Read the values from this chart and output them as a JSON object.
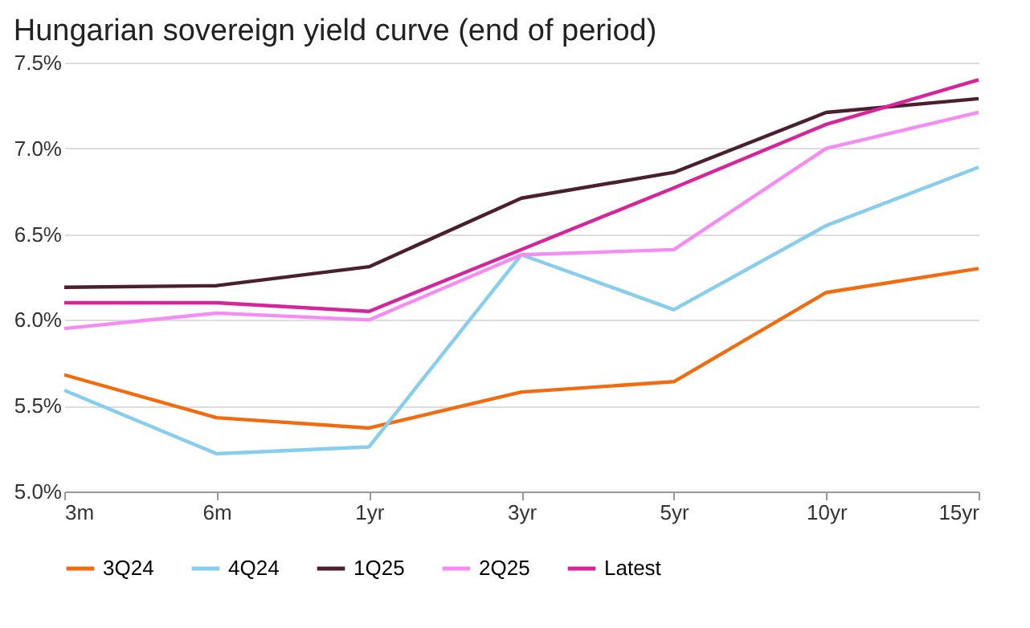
{
  "chart_data": {
    "type": "line",
    "title": "Hungarian sovereign yield curve (end of period)",
    "categories": [
      "3m",
      "6m",
      "1yr",
      "3yr",
      "5yr",
      "10yr",
      "15yr"
    ],
    "series": [
      {
        "name": "3Q24",
        "color": "#f26b0f",
        "values": [
          5.68,
          5.43,
          5.37,
          5.58,
          5.64,
          6.16,
          6.3
        ]
      },
      {
        "name": "4Q24",
        "color": "#87cdee",
        "values": [
          5.59,
          5.22,
          5.26,
          6.38,
          6.06,
          6.55,
          6.89
        ]
      },
      {
        "name": "1Q25",
        "color": "#4a1f2f",
        "values": [
          6.19,
          6.2,
          6.31,
          6.71,
          6.86,
          7.21,
          7.29
        ]
      },
      {
        "name": "2Q25",
        "color": "#f58cf5",
        "values": [
          5.95,
          6.04,
          6.0,
          6.38,
          6.41,
          7.0,
          7.21
        ]
      },
      {
        "name": "Latest",
        "color": "#d6249b",
        "values": [
          6.1,
          6.1,
          6.05,
          6.41,
          6.77,
          7.14,
          7.4
        ]
      }
    ],
    "ylim": [
      5.0,
      7.5
    ],
    "yticks": [
      {
        "value": 5.0,
        "label": "5.0%"
      },
      {
        "value": 5.5,
        "label": "5.5%"
      },
      {
        "value": 6.0,
        "label": "6.0%"
      },
      {
        "value": 6.5,
        "label": "6.5%"
      },
      {
        "value": 7.0,
        "label": "7.0%"
      },
      {
        "value": 7.5,
        "label": "7.5%"
      }
    ],
    "grid": "y",
    "legend": "bottom",
    "marker": "none",
    "line_style": "solid"
  }
}
